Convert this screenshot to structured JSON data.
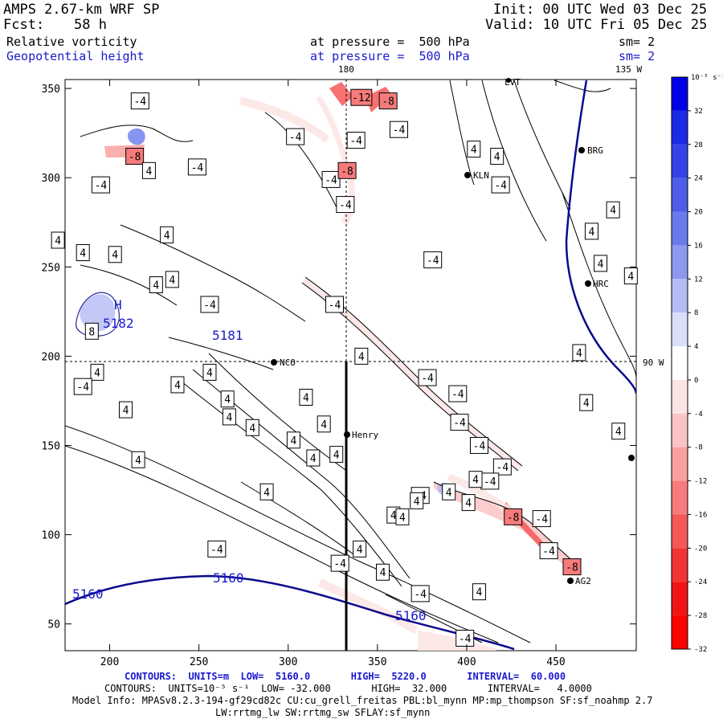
{
  "header": {
    "title": "AMPS 2.67-km WRF SP",
    "fcst_label": "Fcst:",
    "fcst_value": "58 h",
    "init": "Init: 00 UTC Wed 03 Dec 25",
    "valid": "Valid: 10 UTC Fri 05 Dec 25",
    "field1_name": "Relative vorticity",
    "field1_level": "at pressure =  500 hPa",
    "field1_sm": "sm= 2",
    "field2_name": "Geopotential height",
    "field2_level": "at pressure =  500 hPa",
    "field2_sm": "sm= 2"
  },
  "map_labels": {
    "lon_180": "180",
    "lon_135w": "135 W",
    "lat_90w": "90 W",
    "stations": [
      "NCO",
      "Henry",
      "LVT",
      "BRG",
      "KLN",
      "HRC",
      "AG2"
    ],
    "high_marker": "H",
    "height_labels": [
      "5182",
      "5181",
      "5160",
      "5160",
      "5160"
    ]
  },
  "colorbar": {
    "unit_label": "10⁻⁵ s⁻¹",
    "ticks": [
      "32",
      "28",
      "24",
      "20",
      "16",
      "12",
      "8",
      "4",
      "0",
      "-4",
      "-8",
      "-12",
      "-16",
      "-20",
      "-24",
      "-28",
      "-32"
    ],
    "colors": [
      "#0000e6",
      "#1a2ae6",
      "#3343e8",
      "#4d5de9",
      "#6a7aec",
      "#8d99f0",
      "#b3bcf4",
      "#d9def9",
      "#ffffff",
      "#fde4e4",
      "#fbc4c4",
      "#f9a0a0",
      "#f77b7b",
      "#f55858",
      "#f33434",
      "#f01515",
      "#ff0000"
    ]
  },
  "footer": {
    "line1": "CONTOURS:  UNITS=m  LOW=  5160.0       HIGH=  5220.0       INTERVAL=  60.000",
    "line2": "CONTOURS:  UNITS=10⁻⁵ s⁻¹  LOW= -32.000       HIGH=  32.000       INTERVAL=   4.0000",
    "line3": "Model Info: MPASv8.2.3-194-gf29cd82c CU:cu_grell_freitas PBL:bl_mynn MP:mp_thompson SF:sf_noahmp 2.7",
    "line4": "LW:rrtmg_lw SW:rrtmg_sw SFLAY:sf_mynn"
  },
  "chart_data": {
    "type": "contour",
    "title": "Relative vorticity / Geopotential height",
    "xlim": [
      175,
      495
    ],
    "ylim": [
      35,
      355
    ],
    "x_ticks": [
      200,
      250,
      300,
      350,
      400,
      450
    ],
    "y_ticks": [
      50,
      100,
      150,
      200,
      250,
      300,
      350
    ],
    "vorticity_contour_labels": [
      {
        "label": "-4",
        "x": 217,
        "y": 343
      },
      {
        "label": "-4",
        "x": 304,
        "y": 323
      },
      {
        "label": "-12",
        "x": 341,
        "y": 345
      },
      {
        "label": "-8",
        "x": 356,
        "y": 343
      },
      {
        "label": "-4",
        "x": 338,
        "y": 321
      },
      {
        "label": "-4",
        "x": 362,
        "y": 327
      },
      {
        "label": "-8",
        "x": 214,
        "y": 312
      },
      {
        "label": "4",
        "x": 222,
        "y": 304
      },
      {
        "label": "-4",
        "x": 249,
        "y": 306
      },
      {
        "label": "-4",
        "x": 195,
        "y": 296
      },
      {
        "label": "-4",
        "x": 324,
        "y": 299
      },
      {
        "label": "-8",
        "x": 333,
        "y": 304
      },
      {
        "label": "-4",
        "x": 332,
        "y": 285
      },
      {
        "label": "4",
        "x": 404,
        "y": 316
      },
      {
        "label": "4",
        "x": 417,
        "y": 312
      },
      {
        "label": "-4",
        "x": 419,
        "y": 296
      },
      {
        "label": "4",
        "x": 482,
        "y": 282
      },
      {
        "label": "4",
        "x": 171,
        "y": 265
      },
      {
        "label": "4",
        "x": 232,
        "y": 268
      },
      {
        "label": "4",
        "x": 185,
        "y": 258
      },
      {
        "label": "4",
        "x": 203,
        "y": 257
      },
      {
        "label": "4",
        "x": 226,
        "y": 240
      },
      {
        "label": "4",
        "x": 235,
        "y": 243
      },
      {
        "label": "-4",
        "x": 256,
        "y": 229
      },
      {
        "label": "-4",
        "x": 326,
        "y": 229
      },
      {
        "label": "-4",
        "x": 381,
        "y": 254
      },
      {
        "label": "4",
        "x": 470,
        "y": 270
      },
      {
        "label": "4",
        "x": 475,
        "y": 252
      },
      {
        "label": "4",
        "x": 492,
        "y": 245
      },
      {
        "label": "8",
        "x": 190,
        "y": 214
      },
      {
        "label": "4",
        "x": 193,
        "y": 191
      },
      {
        "label": "-4",
        "x": 185,
        "y": 183
      },
      {
        "label": "4",
        "x": 238,
        "y": 184
      },
      {
        "label": "4",
        "x": 256,
        "y": 191
      },
      {
        "label": "4",
        "x": 266,
        "y": 176
      },
      {
        "label": "4",
        "x": 267,
        "y": 166
      },
      {
        "label": "4",
        "x": 280,
        "y": 160
      },
      {
        "label": "4",
        "x": 303,
        "y": 153
      },
      {
        "label": "4",
        "x": 310,
        "y": 177
      },
      {
        "label": "4",
        "x": 320,
        "y": 162
      },
      {
        "label": "4",
        "x": 327,
        "y": 145
      },
      {
        "label": "4",
        "x": 314,
        "y": 143
      },
      {
        "label": "4",
        "x": 341,
        "y": 200
      },
      {
        "label": "-4",
        "x": 378,
        "y": 188
      },
      {
        "label": "-4",
        "x": 395,
        "y": 179
      },
      {
        "label": "-4",
        "x": 396,
        "y": 163
      },
      {
        "label": "-4",
        "x": 407,
        "y": 150
      },
      {
        "label": "-4",
        "x": 420,
        "y": 138
      },
      {
        "label": "-4",
        "x": 413,
        "y": 130
      },
      {
        "label": "4",
        "x": 463,
        "y": 202
      },
      {
        "label": "4",
        "x": 467,
        "y": 174
      },
      {
        "label": "4",
        "x": 485,
        "y": 158
      },
      {
        "label": "4",
        "x": 209,
        "y": 170
      },
      {
        "label": "4",
        "x": 216,
        "y": 142
      },
      {
        "label": "-4",
        "x": 374,
        "y": 122
      },
      {
        "label": "4",
        "x": 390,
        "y": 124
      },
      {
        "label": "4",
        "x": 359,
        "y": 111
      },
      {
        "label": "4",
        "x": 372,
        "y": 119
      },
      {
        "label": "4",
        "x": 401,
        "y": 118
      },
      {
        "label": "4",
        "x": 405,
        "y": 131
      },
      {
        "label": "-8",
        "x": 426,
        "y": 110
      },
      {
        "label": "-4",
        "x": 442,
        "y": 109
      },
      {
        "label": "4",
        "x": 288,
        "y": 124
      },
      {
        "label": "4",
        "x": 364,
        "y": 110
      },
      {
        "label": "-4",
        "x": 329,
        "y": 84
      },
      {
        "label": "4",
        "x": 340,
        "y": 92
      },
      {
        "label": "4",
        "x": 353,
        "y": 79
      },
      {
        "label": "-4",
        "x": 374,
        "y": 67
      },
      {
        "label": "4",
        "x": 407,
        "y": 68
      },
      {
        "label": "-4",
        "x": 446,
        "y": 91
      },
      {
        "label": "-8",
        "x": 459,
        "y": 82
      },
      {
        "label": "-4",
        "x": 399,
        "y": 42
      },
      {
        "label": "-4",
        "x": 260,
        "y": 92
      }
    ],
    "height_contour_labels": [
      {
        "label": "5182",
        "x": 186,
        "y": 219
      },
      {
        "label": "5181",
        "x": 240,
        "y": 210
      },
      {
        "label": "5160",
        "x": 160,
        "y": 73
      },
      {
        "label": "5160",
        "x": 273,
        "y": 77
      },
      {
        "label": "5160",
        "x": 357,
        "y": 57
      }
    ],
    "grid": false
  }
}
